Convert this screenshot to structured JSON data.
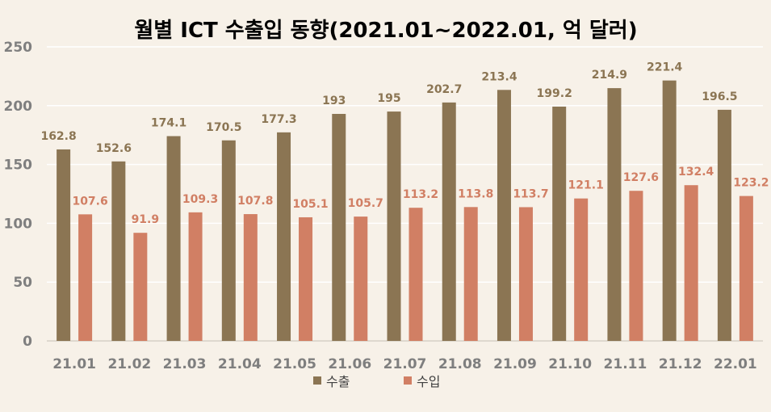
{
  "chart_data": {
    "type": "bar",
    "title": "월별 ICT 수출입 동향(2021.01~2022.01, 억 달러)",
    "categories": [
      "21.01",
      "21.02",
      "21.03",
      "21.04",
      "21.05",
      "21.06",
      "21.07",
      "21.08",
      "21.09",
      "21.10",
      "21.11",
      "21.12",
      "22.01"
    ],
    "series": [
      {
        "name": "수출",
        "color": "#8b7553",
        "label_color": "#8b7553",
        "values": [
          162.8,
          152.6,
          174.1,
          170.5,
          177.3,
          193,
          195,
          202.7,
          213.4,
          199.2,
          214.9,
          221.4,
          196.5
        ],
        "labels": [
          "162.8",
          "152.6",
          "174.1",
          "170.5",
          "177.3",
          "193",
          "195",
          "202.7",
          "213.4",
          "199.2",
          "214.9",
          "221.4",
          "196.5"
        ]
      },
      {
        "name": "수입",
        "color": "#d17f64",
        "label_color": "#d17f64",
        "values": [
          107.6,
          91.9,
          109.3,
          107.8,
          105.1,
          105.7,
          113.2,
          113.8,
          113.7,
          121.1,
          127.6,
          132.4,
          123.2
        ],
        "labels": [
          "107.6",
          "91.9",
          "109.3",
          "107.8",
          "105.1",
          "105.7",
          "113.2",
          "113.8",
          "113.7",
          "121.1",
          "127.6",
          "132.4",
          "123.2"
        ]
      }
    ],
    "xlabel": "",
    "ylabel": "",
    "ylim": [
      0,
      250
    ],
    "yticks": [
      "0",
      "50",
      "100",
      "150",
      "200",
      "250"
    ],
    "grid": true,
    "legend": "bottom"
  }
}
